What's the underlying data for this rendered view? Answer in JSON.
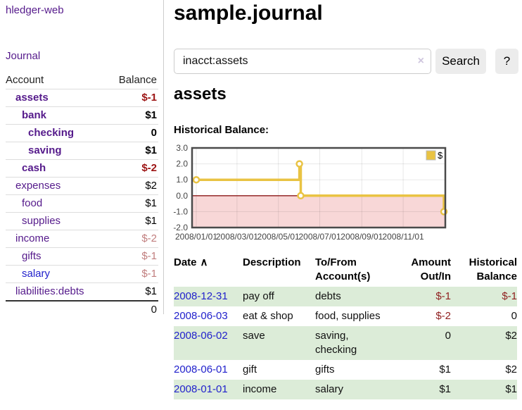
{
  "app": {
    "title": "hledger-web",
    "journal_nav": "Journal"
  },
  "sidebar": {
    "headers": {
      "account": "Account",
      "balance": "Balance"
    },
    "accounts": [
      {
        "name": "assets",
        "depth": 1,
        "bold": true,
        "balance": "$-1",
        "balance_style": "neg"
      },
      {
        "name": "bank",
        "depth": 2,
        "bold": true,
        "balance": "$1",
        "balance_style": "pos"
      },
      {
        "name": "checking",
        "depth": 3,
        "bold": true,
        "balance": "0",
        "balance_style": "pos"
      },
      {
        "name": "saving",
        "depth": 3,
        "bold": true,
        "balance": "$1",
        "balance_style": "pos"
      },
      {
        "name": "cash",
        "depth": 2,
        "bold": true,
        "balance": "$-2",
        "balance_style": "neg"
      },
      {
        "name": "expenses",
        "depth": 1,
        "bold": false,
        "balance": "$2",
        "balance_style": "pos"
      },
      {
        "name": "food",
        "depth": 2,
        "bold": false,
        "balance": "$1",
        "balance_style": "pos"
      },
      {
        "name": "supplies",
        "depth": 2,
        "bold": false,
        "balance": "$1",
        "balance_style": "pos"
      },
      {
        "name": "income",
        "depth": 1,
        "bold": false,
        "balance": "$-2",
        "balance_style": "neg-light"
      },
      {
        "name": "gifts",
        "depth": 2,
        "bold": false,
        "balance": "$-1",
        "balance_style": "neg-light"
      },
      {
        "name": "salary",
        "depth": 2,
        "bold": false,
        "balance": "$-1",
        "balance_style": "neg-light",
        "link_style": "blue"
      },
      {
        "name": "liabilities:debts",
        "depth": 1,
        "bold": false,
        "balance": "$1",
        "balance_style": "pos"
      }
    ],
    "total": "0"
  },
  "main": {
    "page_title": "sample.journal",
    "search": {
      "value": "inacct:assets",
      "clear_icon": "×",
      "search_button": "Search",
      "help_button": "?"
    },
    "account_heading": "assets",
    "chart_title": "Historical Balance:"
  },
  "chart_data": {
    "type": "line",
    "step": true,
    "title": "Historical Balance",
    "legend": [
      {
        "label": "$",
        "color": "#e9c343"
      }
    ],
    "legend_position": "top-right",
    "grid": true,
    "xlim": [
      "2008-01-01",
      "2008-12-31"
    ],
    "ylim": [
      -2,
      3
    ],
    "y_ticks": [
      3.0,
      2.0,
      1.0,
      0.0,
      -1.0,
      -2.0
    ],
    "x_ticks": [
      "2008/01/01",
      "2008/03/01",
      "2008/05/01",
      "2008/07/01",
      "2008/09/01",
      "2008/11/01"
    ],
    "series": [
      {
        "name": "$",
        "color": "#e9c343",
        "points": [
          {
            "date": "2008-01-01",
            "value": 1
          },
          {
            "date": "2008-06-01",
            "value": 2
          },
          {
            "date": "2008-06-03",
            "value": 0
          },
          {
            "date": "2008-12-31",
            "value": -1
          }
        ]
      }
    ],
    "negative_region_color": "#f8d7d7",
    "zero_line_color": "#8b1a1a",
    "plot_border_color": "#4a4a4a"
  },
  "register": {
    "headers": [
      {
        "line1": "Date",
        "line2": "",
        "align": "left",
        "sort_icon": "∧"
      },
      {
        "line1": "Description",
        "line2": "",
        "align": "left"
      },
      {
        "line1": "To/From",
        "line2": "Account(s)",
        "align": "left"
      },
      {
        "line1": "Amount",
        "line2": "Out/In",
        "align": "right"
      },
      {
        "line1": "Historical",
        "line2": "Balance",
        "align": "right"
      }
    ],
    "rows": [
      {
        "date": "2008-12-31",
        "description": "pay off",
        "accounts": "debts",
        "amount": "$-1",
        "amount_neg": true,
        "balance": "$-1",
        "balance_neg": true
      },
      {
        "date": "2008-06-03",
        "description": "eat & shop",
        "accounts": "food, supplies",
        "amount": "$-2",
        "amount_neg": true,
        "balance": "0",
        "balance_neg": false
      },
      {
        "date": "2008-06-02",
        "description": "save",
        "accounts": "saving, checking",
        "amount": "0",
        "amount_neg": false,
        "balance": "$2",
        "balance_neg": false
      },
      {
        "date": "2008-06-01",
        "description": "gift",
        "accounts": "gifts",
        "amount": "$1",
        "amount_neg": false,
        "balance": "$2",
        "balance_neg": false
      },
      {
        "date": "2008-01-01",
        "description": "income",
        "accounts": "salary",
        "amount": "$1",
        "amount_neg": false,
        "balance": "$1",
        "balance_neg": false
      }
    ]
  }
}
